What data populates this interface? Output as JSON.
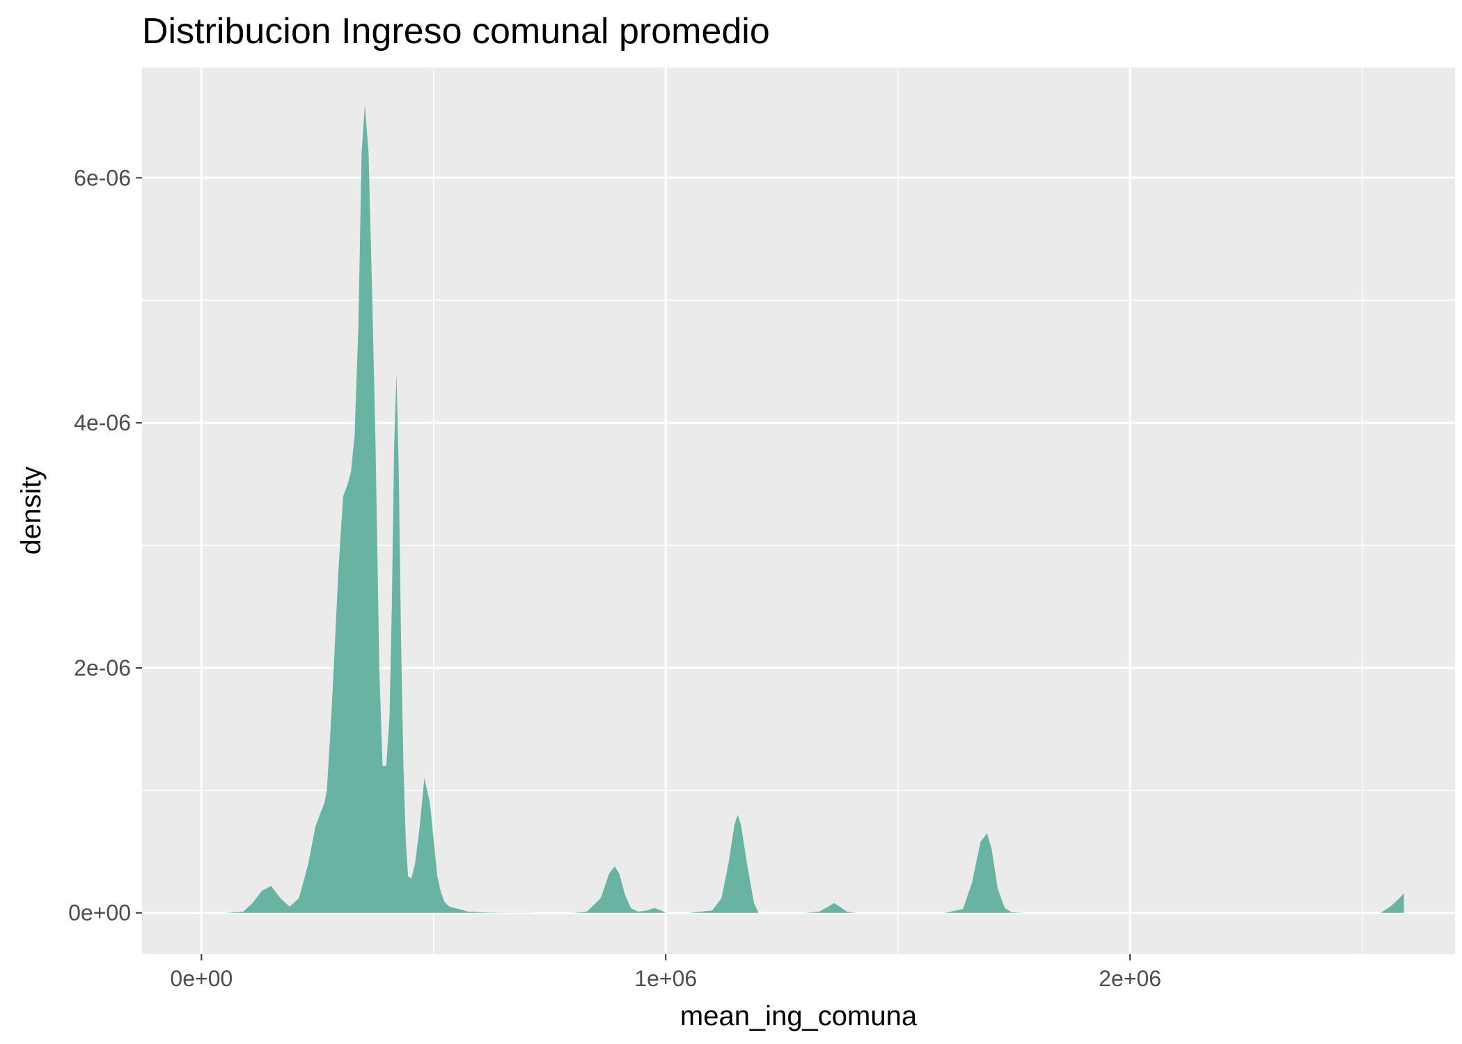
{
  "chart_data": {
    "type": "area",
    "title": "Distribucion Ingreso comunal promedio",
    "xlabel": "mean_ing_comuna",
    "ylabel": "density",
    "x_ticks": [
      0,
      1000000,
      2000000
    ],
    "x_tick_labels": [
      "0e+00",
      "1e+06",
      "2e+06"
    ],
    "y_ticks": [
      0,
      2e-06,
      4e-06,
      6e-06
    ],
    "y_tick_labels": [
      "0e+00",
      "2e-06",
      "4e-06",
      "6e-06"
    ],
    "xlim": [
      -128000,
      2700000
    ],
    "ylim": [
      -3.37e-07,
      6.9e-06
    ],
    "grid": true,
    "legend": "none",
    "fill_color": "#69B3A2",
    "panel_background": "#EBEBEB",
    "grid_color": "#FFFFFF",
    "series": [
      {
        "x": [
          0,
          50000,
          90000,
          110000,
          130000,
          150000,
          170000,
          190000,
          210000,
          230000,
          245000,
          255000,
          265000,
          270000,
          278000,
          285000,
          295000,
          305000,
          315000,
          322000,
          330000,
          338000,
          345000,
          352000,
          360000,
          368000,
          375000,
          383000,
          390000,
          398000,
          405000,
          410000,
          415000,
          420000,
          425000,
          430000,
          435000,
          440000,
          445000,
          452000,
          460000,
          470000,
          480000,
          492000,
          500000,
          508000,
          515000,
          522000,
          528000,
          535000,
          545000,
          555000,
          565000,
          575000,
          585000,
          600000,
          620000,
          640000,
          660000,
          680000,
          700000,
          720000,
          760000,
          800000,
          830000,
          860000,
          878000,
          890000,
          900000,
          912000,
          925000,
          940000,
          960000,
          975000,
          990000,
          1000000,
          1050000,
          1100000,
          1120000,
          1135000,
          1148000,
          1155000,
          1162000,
          1175000,
          1190000,
          1200000,
          1300000,
          1330000,
          1350000,
          1362000,
          1375000,
          1390000,
          1410000,
          1600000,
          1640000,
          1660000,
          1678000,
          1692000,
          1702000,
          1715000,
          1730000,
          1745000,
          1770000,
          2000000,
          2540000,
          2560000,
          2575000,
          2590000
        ],
        "y": [
          0,
          0,
          1e-08,
          8e-08,
          1.8e-07,
          2.2e-07,
          1.2e-07,
          5e-08,
          1.2e-07,
          4e-07,
          7e-07,
          8e-07,
          9e-07,
          1e-06,
          1.5e-06,
          2e-06,
          2.8e-06,
          3.4e-06,
          3.5e-06,
          3.6e-06,
          3.9e-06,
          4.8e-06,
          6.2e-06,
          6.6e-06,
          6.2e-06,
          5e-06,
          3.8e-06,
          2e-06,
          1.2e-06,
          1.2e-06,
          1.6e-06,
          2.5e-06,
          3.8e-06,
          4.4e-06,
          3.6e-06,
          2.2e-06,
          1.2e-06,
          6e-07,
          3e-07,
          2.8e-07,
          4e-07,
          7e-07,
          1.1e-06,
          9e-07,
          6e-07,
          3e-07,
          1.8e-07,
          1e-07,
          7e-08,
          5e-08,
          4e-08,
          3e-08,
          2e-08,
          1e-08,
          1e-08,
          5e-09,
          3e-09,
          2e-09,
          1e-09,
          1e-09,
          1e-09,
          0,
          0,
          0,
          1e-08,
          1.2e-07,
          3.2e-07,
          3.8e-07,
          3.2e-07,
          1.5e-07,
          4e-08,
          1e-08,
          2e-08,
          4e-08,
          2e-08,
          0,
          0,
          2e-08,
          1.2e-07,
          4e-07,
          7.2e-07,
          8e-07,
          7.2e-07,
          4e-07,
          8e-08,
          0,
          0,
          1e-08,
          5e-08,
          8e-08,
          5e-08,
          1e-08,
          0,
          0,
          3e-08,
          2.5e-07,
          5.8e-07,
          6.5e-07,
          5.2e-07,
          2e-07,
          4e-08,
          5e-09,
          0,
          0,
          0,
          5e-08,
          1e-07,
          1.6e-07
        ]
      }
    ]
  }
}
